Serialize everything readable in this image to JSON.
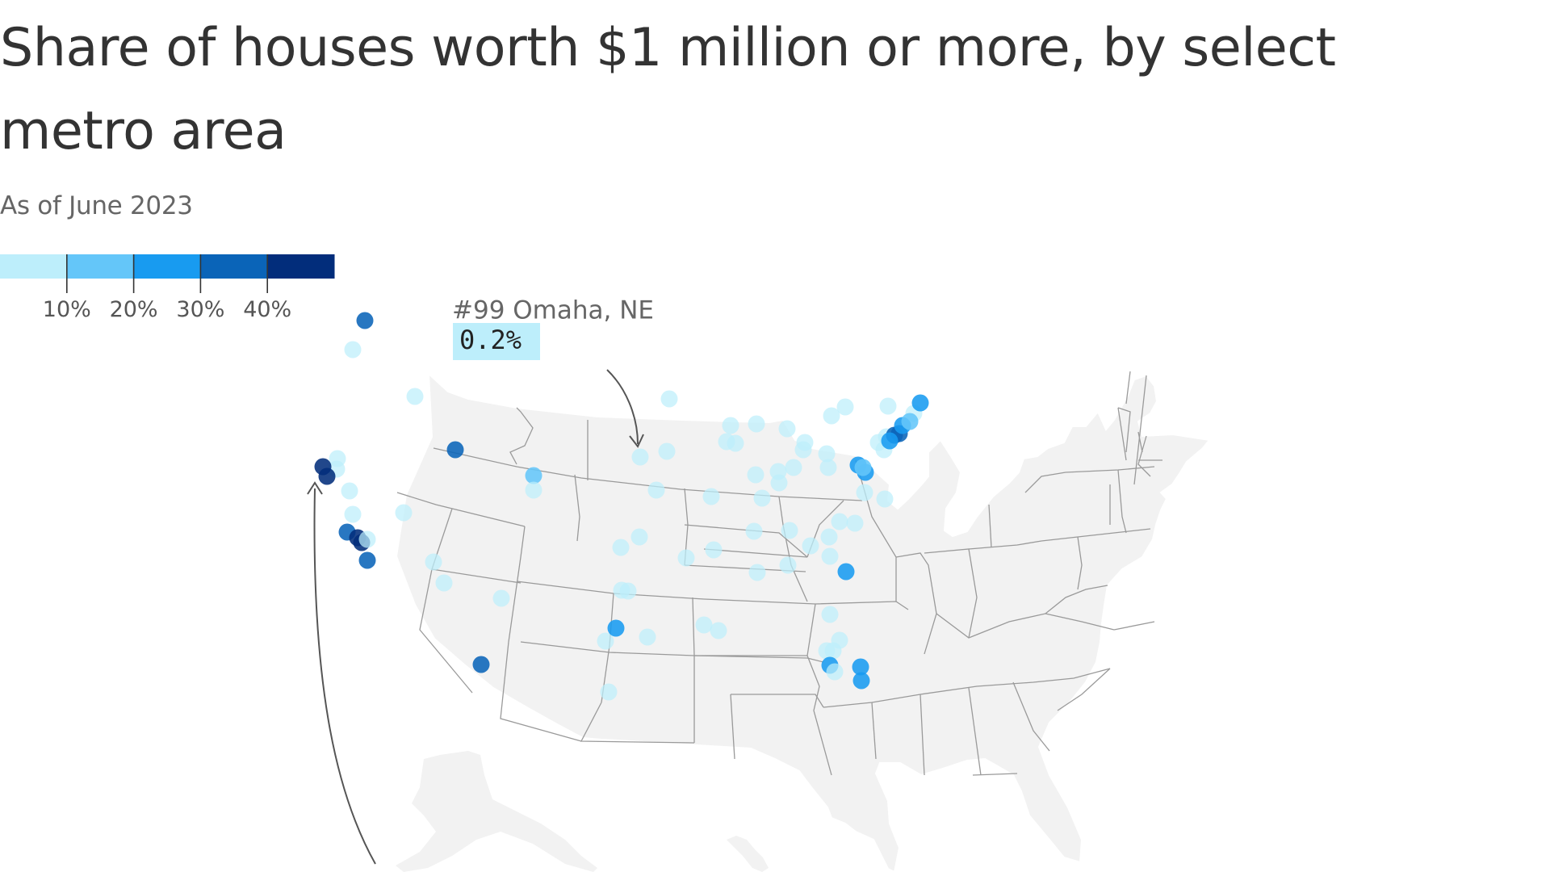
{
  "title": "Share of houses worth $1 million or more, by select metro area",
  "subtitle": "As of June 2023",
  "legend": {
    "bins": [
      {
        "color": "#bdeefb",
        "min": 0,
        "max": 10
      },
      {
        "color": "#64c6f9",
        "min": 10,
        "max": 20
      },
      {
        "color": "#189bf0",
        "min": 20,
        "max": 30
      },
      {
        "color": "#0a64b8",
        "min": 30,
        "max": 40
      },
      {
        "color": "#022d7b",
        "min": 40,
        "max": 50
      }
    ],
    "tick_labels": [
      "10%",
      "20%",
      "30%",
      "40%"
    ]
  },
  "annotation": {
    "label": "#99 Omaha, NE",
    "value": "0.2%",
    "color": "#bdeefb"
  },
  "map_data": {
    "basemap": "United States states with Alaska and Hawaii insets",
    "land_color": "#f2f2f2",
    "border_color": "#9a9a9a"
  }
}
